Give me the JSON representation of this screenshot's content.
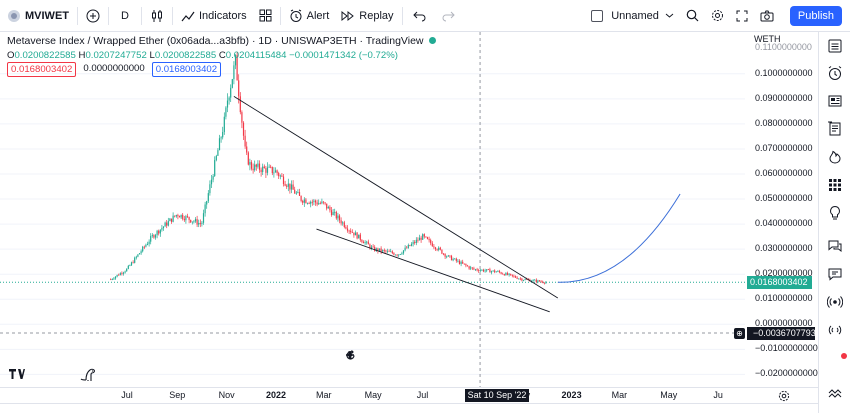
{
  "toolbar": {
    "symbol": "MVIWET",
    "interval": "D",
    "indicators_label": "Indicators",
    "alert_label": "Alert",
    "replay_label": "Replay",
    "layout_name": "Unnamed",
    "publish_label": "Publish"
  },
  "legend": {
    "title": "Metaverse Index / Wrapped Ether (0x06ada...a3bfb) · 1D · UNISWAP3ETH · TradingView",
    "open_label": "O",
    "open": "0.0200822585",
    "high_label": "H",
    "high": "0.0207247752",
    "low_label": "L",
    "low": "0.0200822585",
    "close_label": "C",
    "close": "0.0204115484",
    "change": "−0.0001471342 (−0.72%)"
  },
  "indicator_values": [
    "0.0168003402",
    "0.0000000000",
    "0.0168003402"
  ],
  "price_scale": {
    "currency": "WETH",
    "ticks": [
      "0.1000000000",
      "0.0900000000",
      "0.0800000000",
      "0.0700000000",
      "0.0600000000",
      "0.0500000000",
      "0.0400000000",
      "0.0300000000",
      "0.0200000000",
      "0.0100000000",
      "0.0000000000",
      "−0.0100000000",
      "−0.0200000000"
    ],
    "top_tick": "0.1100000000",
    "last_price": "0.0168003402",
    "crosshair_price": "−0.0036707793"
  },
  "time_axis": {
    "ticks": [
      "Jul",
      "Sep",
      "Nov",
      "2022",
      "Mar",
      "May",
      "Jul",
      "Nov",
      "2023",
      "Mar",
      "May",
      "Ju"
    ],
    "crosshair_date": "Sat 10 Sep '22"
  },
  "colors": {
    "up": "#22ab94",
    "down": "#f23645",
    "accent": "#2962ff",
    "projection": "#3c6fd8"
  },
  "chart_data": {
    "type": "candlestick",
    "series_approx_close": [
      {
        "date": "2021-06-01",
        "value": 0.016
      },
      {
        "date": "2021-07-01",
        "value": 0.022
      },
      {
        "date": "2021-08-01",
        "value": 0.035
      },
      {
        "date": "2021-09-01",
        "value": 0.044
      },
      {
        "date": "2021-10-01",
        "value": 0.04
      },
      {
        "date": "2021-11-01",
        "value": 0.085
      },
      {
        "date": "2021-12-01",
        "value": 0.063
      },
      {
        "date": "2022-01-01",
        "value": 0.061
      },
      {
        "date": "2022-02-01",
        "value": 0.05
      },
      {
        "date": "2022-03-01",
        "value": 0.048
      },
      {
        "date": "2022-04-01",
        "value": 0.038
      },
      {
        "date": "2022-05-01",
        "value": 0.03
      },
      {
        "date": "2022-06-01",
        "value": 0.028
      },
      {
        "date": "2022-07-01",
        "value": 0.035
      },
      {
        "date": "2022-08-01",
        "value": 0.027
      },
      {
        "date": "2022-09-01",
        "value": 0.022
      },
      {
        "date": "2022-10-01",
        "value": 0.021
      },
      {
        "date": "2022-11-01",
        "value": 0.018
      },
      {
        "date": "2022-12-01",
        "value": 0.0168
      }
    ],
    "drawings": [
      {
        "type": "trend-line",
        "from": {
          "date": "2021-11-10",
          "value": 0.091
        },
        "to": {
          "date": "2022-12-15",
          "value": 0.0105
        }
      },
      {
        "type": "trend-line",
        "from": {
          "date": "2022-02-20",
          "value": 0.038
        },
        "to": {
          "date": "2022-12-05",
          "value": 0.005
        }
      },
      {
        "type": "curve-projection",
        "from": {
          "date": "2022-12-15",
          "value": 0.0168
        },
        "to": {
          "date": "2023-05-15",
          "value": 0.052
        }
      }
    ],
    "ylim": [
      -0.02,
      0.11
    ],
    "grid": true
  }
}
